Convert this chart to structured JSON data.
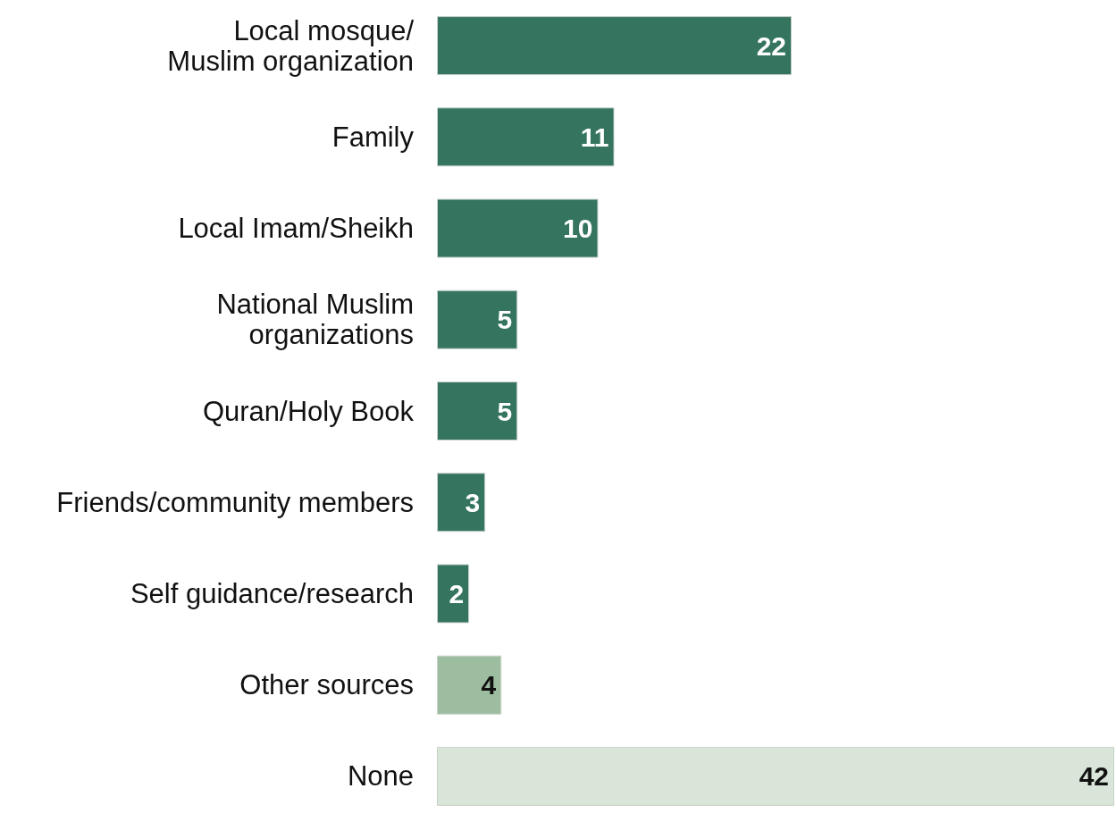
{
  "chart_data": {
    "type": "bar",
    "orientation": "horizontal",
    "categories": [
      "Local mosque/\nMuslim organization",
      "Family",
      "Local Imam/Sheikh",
      "National Muslim\norganizations",
      "Quran/Holy Book",
      "Friends/community members",
      "Self guidance/research",
      "Other sources",
      "None"
    ],
    "values": [
      22,
      11,
      10,
      5,
      5,
      3,
      2,
      4,
      42
    ],
    "colors": [
      "#357560",
      "#357560",
      "#357560",
      "#357560",
      "#357560",
      "#357560",
      "#357560",
      "#9dbda0",
      "#d9e5d9"
    ],
    "data_labels": true
  }
}
